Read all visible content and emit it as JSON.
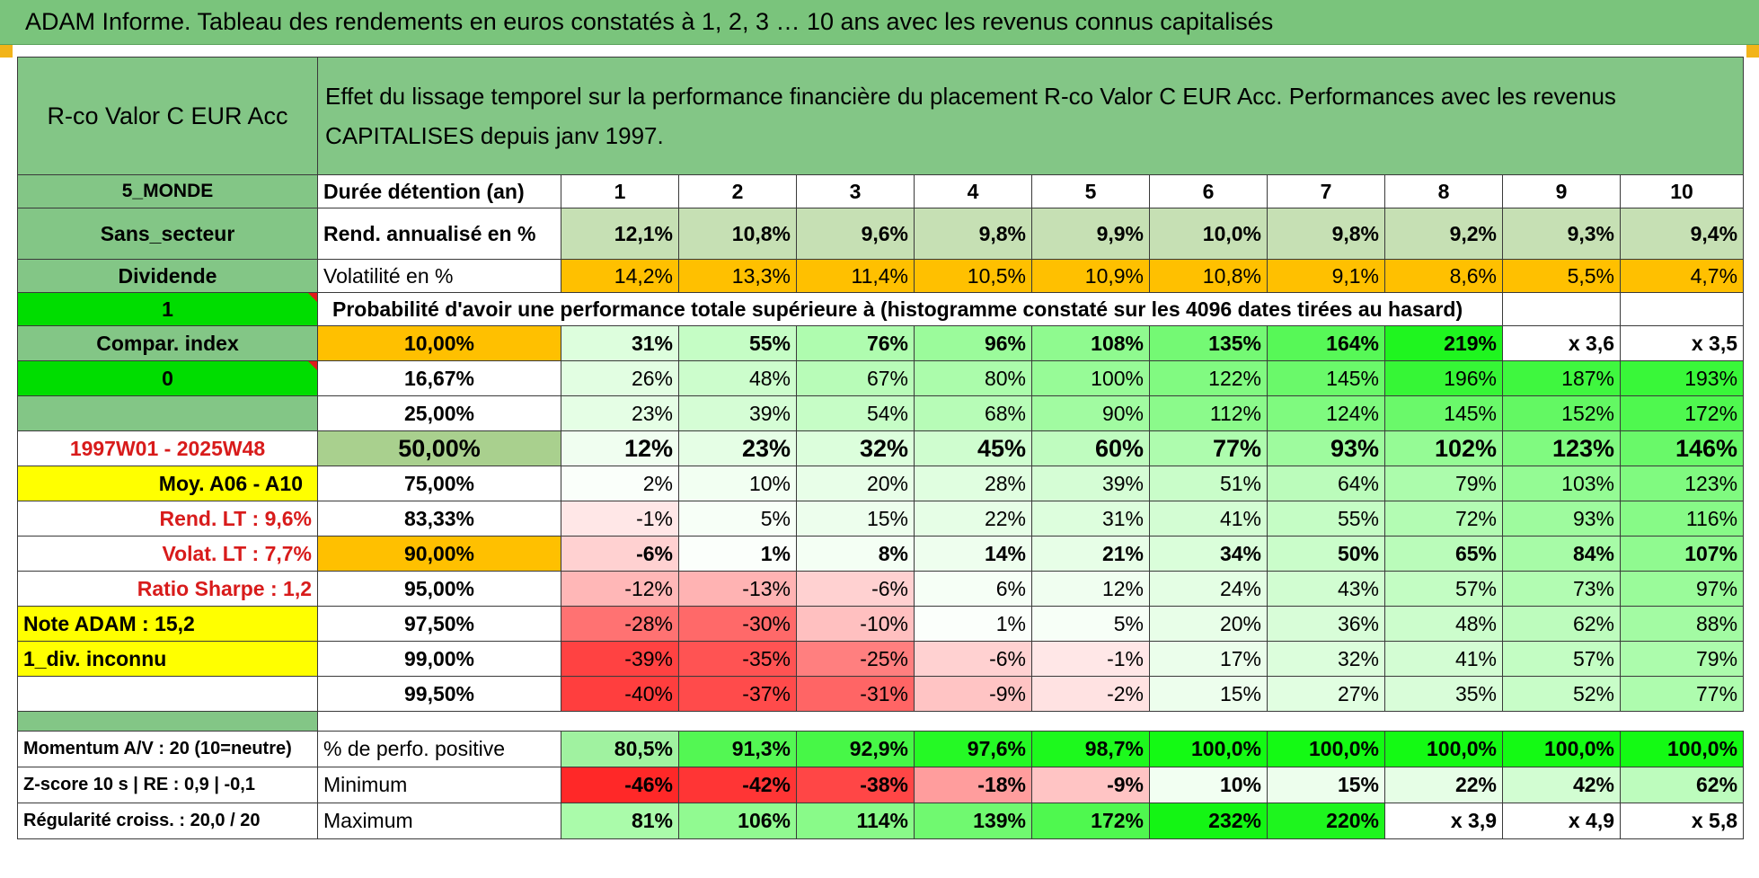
{
  "title": "ADAM Informe. Tableau des rendements en euros constatés à 1, 2, 3 … 10 ans avec les revenus connus capitalisés",
  "fund_name": "R-co Valor C EUR Acc",
  "header_text": "Effet du lissage temporel sur la performance financière du placement R-co Valor C EUR Acc. Performances avec les revenus CAPITALISES depuis janv 1997.",
  "left_labels": {
    "zone": "5_MONDE",
    "secteur": "Sans_secteur",
    "dividende": "Dividende",
    "flag1": "1",
    "compar": "Compar. index",
    "flag0": "0",
    "blank": "",
    "period": "1997W01 - 2025W48",
    "moy": "Moy. A06 - A10",
    "rend_lt": "Rend. LT :    9,6%",
    "volat_lt": "Volat. LT :    7,7%",
    "sharpe": "Ratio Sharpe :    1,2",
    "note": "Note ADAM : 15,2",
    "div_inconnu": "1_div. inconnu"
  },
  "duration_label": "Durée détention (an)",
  "years": [
    "1",
    "2",
    "3",
    "4",
    "5",
    "6",
    "7",
    "8",
    "9",
    "10"
  ],
  "rend_label": "Rend. annualisé en %",
  "rend_values": [
    "12,1%",
    "10,8%",
    "9,6%",
    "9,8%",
    "9,9%",
    "10,0%",
    "9,8%",
    "9,2%",
    "9,3%",
    "9,4%"
  ],
  "vol_label": "Volatilité en %",
  "vol_values": [
    "14,2%",
    "13,3%",
    "11,4%",
    "10,5%",
    "10,9%",
    "10,8%",
    "9,1%",
    "8,6%",
    "5,5%",
    "4,7%"
  ],
  "prob_header": "Probabilité d'avoir une performance totale supérieure à (histogramme constaté sur les 4096 dates tirées au hasard)",
  "prob_rows": [
    {
      "p": "10,00%",
      "v": [
        "31%",
        "55%",
        "76%",
        "96%",
        "108%",
        "135%",
        "164%",
        "219%",
        "x 3,6",
        "x 3,5"
      ]
    },
    {
      "p": "16,67%",
      "v": [
        "26%",
        "48%",
        "67%",
        "80%",
        "100%",
        "122%",
        "145%",
        "196%",
        "187%",
        "193%"
      ]
    },
    {
      "p": "25,00%",
      "v": [
        "23%",
        "39%",
        "54%",
        "68%",
        "90%",
        "112%",
        "124%",
        "145%",
        "152%",
        "172%"
      ]
    },
    {
      "p": "50,00%",
      "v": [
        "12%",
        "23%",
        "32%",
        "45%",
        "60%",
        "77%",
        "93%",
        "102%",
        "123%",
        "146%"
      ]
    },
    {
      "p": "75,00%",
      "v": [
        "2%",
        "10%",
        "20%",
        "28%",
        "39%",
        "51%",
        "64%",
        "79%",
        "103%",
        "123%"
      ]
    },
    {
      "p": "83,33%",
      "v": [
        "-1%",
        "5%",
        "15%",
        "22%",
        "31%",
        "41%",
        "55%",
        "72%",
        "93%",
        "116%"
      ]
    },
    {
      "p": "90,00%",
      "v": [
        "-6%",
        "1%",
        "8%",
        "14%",
        "21%",
        "34%",
        "50%",
        "65%",
        "84%",
        "107%"
      ]
    },
    {
      "p": "95,00%",
      "v": [
        "-12%",
        "-13%",
        "-6%",
        "6%",
        "12%",
        "24%",
        "43%",
        "57%",
        "73%",
        "97%"
      ]
    },
    {
      "p": "97,50%",
      "v": [
        "-28%",
        "-30%",
        "-10%",
        "1%",
        "5%",
        "20%",
        "36%",
        "48%",
        "62%",
        "88%"
      ]
    },
    {
      "p": "99,00%",
      "v": [
        "-39%",
        "-35%",
        "-25%",
        "-6%",
        "-1%",
        "17%",
        "32%",
        "41%",
        "57%",
        "79%"
      ]
    },
    {
      "p": "99,50%",
      "v": [
        "-40%",
        "-37%",
        "-31%",
        "-9%",
        "-2%",
        "15%",
        "27%",
        "35%",
        "52%",
        "77%"
      ]
    }
  ],
  "bottom": {
    "momentum": "Momentum A/V : 20 (10=neutre)",
    "zscore": "Z-score 10 s | RE : 0,9 | -0,1",
    "regularite": "Régularité croiss. : 20,0 / 20",
    "pos_label": "% de perfo. positive",
    "pos_values": [
      "80,5%",
      "91,3%",
      "92,9%",
      "97,6%",
      "98,7%",
      "100,0%",
      "100,0%",
      "100,0%",
      "100,0%",
      "100,0%"
    ],
    "min_label": "Minimum",
    "min_values": [
      "-46%",
      "-42%",
      "-38%",
      "-18%",
      "-9%",
      "10%",
      "15%",
      "22%",
      "42%",
      "62%"
    ],
    "max_label": "Maximum",
    "max_values": [
      "81%",
      "106%",
      "114%",
      "139%",
      "172%",
      "232%",
      "220%",
      "x 3,9",
      "x 4,9",
      "x 5,8"
    ]
  }
}
